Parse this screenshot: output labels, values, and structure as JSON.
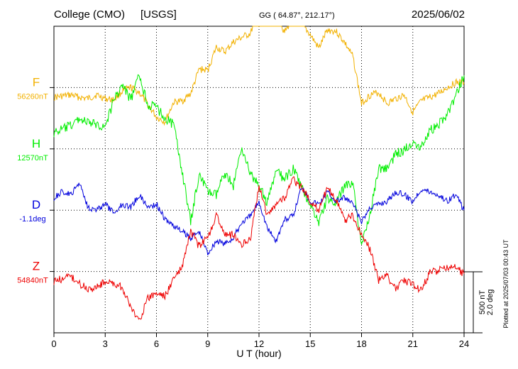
{
  "header": {
    "station": "College (CMO)",
    "source": "[USGS]",
    "coords": "GG ( 64.87°, 212.17°)",
    "date": "2025/06/02"
  },
  "side_note": "Plotted at 2025/07/03 00:43 UT",
  "scale_bar": {
    "nt": "500 nT",
    "deg": "2.0 deg"
  },
  "chart_data": {
    "type": "line",
    "xlabel": "U T (hour)",
    "xlim": [
      0,
      24
    ],
    "xticks": [
      "0",
      "3",
      "6",
      "9",
      "12",
      "15",
      "18",
      "21",
      "24"
    ],
    "y_unit_per_div": "500 nT / 2.0 deg",
    "grid": true,
    "series": [
      {
        "name": "F",
        "baseline_label": "56260nT",
        "color": "#f2b100",
        "x": [
          0,
          0.5,
          1,
          1.5,
          2,
          2.5,
          3,
          3.5,
          4,
          4.5,
          5,
          5.5,
          6,
          6.5,
          7,
          7.5,
          8,
          8.5,
          9,
          9.5,
          10,
          10.5,
          11,
          11.5,
          12,
          12.5,
          13,
          13.5,
          14,
          14.5,
          15,
          15.5,
          16,
          16.5,
          17,
          17.5,
          18,
          18.5,
          19,
          19.5,
          20,
          20.5,
          21,
          21.5,
          22,
          22.5,
          23,
          23.5,
          24
        ],
        "offset_nT": [
          -80,
          -70,
          -60,
          -80,
          -90,
          -60,
          -90,
          -100,
          -30,
          0,
          -40,
          -140,
          -240,
          -280,
          -120,
          -110,
          -50,
          150,
          140,
          330,
          290,
          370,
          410,
          440,
          660,
          590,
          600,
          450,
          570,
          520,
          430,
          320,
          470,
          460,
          370,
          250,
          -130,
          -60,
          -40,
          -130,
          -90,
          -60,
          -200,
          -110,
          -80,
          -50,
          0,
          40,
          40
        ]
      },
      {
        "name": "H",
        "baseline_label": "12570nT",
        "color": "#00ee00",
        "x": [
          0,
          0.5,
          1,
          1.5,
          2,
          2.5,
          3,
          3.5,
          4,
          4.5,
          5,
          5.5,
          6,
          6.5,
          7,
          7.5,
          8,
          8.5,
          9,
          9.5,
          10,
          10.5,
          11,
          11.5,
          12,
          12.5,
          13,
          13.5,
          14,
          14.5,
          15,
          15.5,
          16,
          16.5,
          17,
          17.5,
          18,
          18.5,
          19,
          19.5,
          20,
          20.5,
          21,
          21.5,
          22,
          22.5,
          23,
          23.5,
          24
        ],
        "offset_nT": [
          130,
          160,
          190,
          250,
          210,
          200,
          180,
          400,
          520,
          400,
          600,
          360,
          340,
          250,
          200,
          -180,
          -600,
          -200,
          -350,
          -380,
          -190,
          -300,
          20,
          -210,
          -300,
          -440,
          -180,
          -250,
          -160,
          -320,
          -450,
          -600,
          -400,
          -450,
          -300,
          -280,
          -800,
          -520,
          -160,
          -160,
          -40,
          -10,
          60,
          20,
          150,
          200,
          280,
          420,
          600
        ]
      },
      {
        "name": "D",
        "baseline_label": "-1.1deg",
        "color": "#0000dd",
        "x": [
          0,
          0.5,
          1,
          1.5,
          2,
          2.5,
          3,
          3.5,
          4,
          4.5,
          5,
          5.5,
          6,
          6.5,
          7,
          7.5,
          8,
          8.5,
          9,
          9.5,
          10,
          10.5,
          11,
          11.5,
          12,
          12.5,
          13,
          13.5,
          14,
          14.5,
          15,
          15.5,
          16,
          16.5,
          17,
          17.5,
          18,
          18.5,
          19,
          19.5,
          20,
          20.5,
          21,
          21.5,
          22,
          22.5,
          23,
          23.5,
          24
        ],
        "offset_deg": [
          0.4,
          0.6,
          0.5,
          0.9,
          0.1,
          0.0,
          0.2,
          -0.1,
          0.2,
          0.1,
          0.5,
          0.1,
          0.2,
          -0.3,
          -0.5,
          -0.7,
          -0.9,
          -0.7,
          -1.4,
          -1.0,
          -1.1,
          -0.9,
          -0.4,
          -0.2,
          0.3,
          -0.6,
          -1.0,
          -0.3,
          -0.2,
          0.8,
          0.3,
          0.2,
          0.6,
          0.3,
          0.4,
          0.2,
          -0.4,
          0.1,
          0.2,
          0.3,
          0.6,
          0.5,
          0.3,
          0.7,
          0.6,
          0.5,
          0.3,
          0.5,
          0.0
        ]
      },
      {
        "name": "Z",
        "baseline_label": "54840nT",
        "color": "#ee0000",
        "x": [
          0,
          0.5,
          1,
          1.5,
          2,
          2.5,
          3,
          3.5,
          4,
          4.5,
          5,
          5.5,
          6,
          6.5,
          7,
          7.5,
          8,
          8.5,
          9,
          9.5,
          10,
          10.5,
          11,
          11.5,
          12,
          12.5,
          13,
          13.5,
          14,
          14.5,
          15,
          15.5,
          16,
          16.5,
          17,
          17.5,
          18,
          18.5,
          19,
          19.5,
          20,
          20.5,
          21,
          21.5,
          22,
          22.5,
          23,
          23.5,
          24
        ],
        "offset_nT": [
          -80,
          -60,
          -40,
          -100,
          -140,
          -130,
          -80,
          -100,
          -130,
          -300,
          -400,
          -220,
          -180,
          -200,
          -60,
          30,
          330,
          200,
          280,
          460,
          300,
          300,
          220,
          280,
          700,
          450,
          560,
          600,
          750,
          680,
          580,
          500,
          680,
          600,
          420,
          450,
          300,
          180,
          -70,
          -40,
          -140,
          -70,
          -110,
          -150,
          -10,
          10,
          30,
          30,
          -20
        ]
      }
    ]
  }
}
